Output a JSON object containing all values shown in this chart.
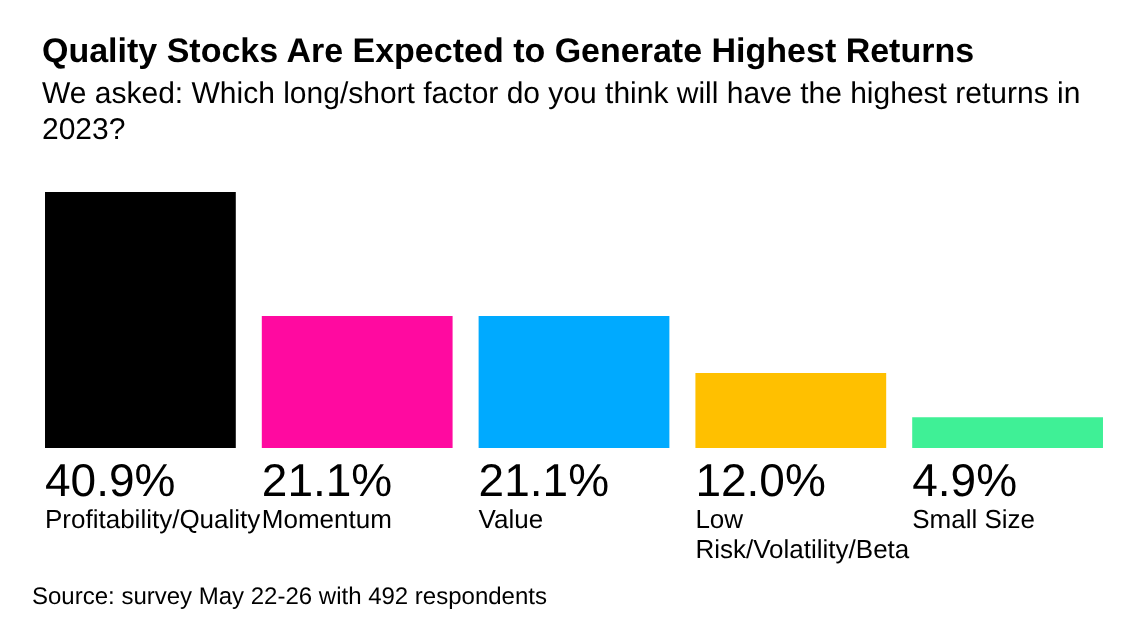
{
  "chart_data": {
    "type": "bar",
    "title": "Quality Stocks Are Expected to Generate Highest Returns",
    "subtitle": "We asked: Which long/short factor do you think will have the highest returns in 2023?",
    "categories": [
      "Profitability/Quality",
      "Momentum",
      "Value",
      "Low Risk/Volatility/Beta",
      "Small Size"
    ],
    "values": [
      40.9,
      21.1,
      21.1,
      12.0,
      4.9
    ],
    "colors": [
      "#000000",
      "#ff0aa0",
      "#00aaff",
      "#ffc000",
      "#3ff096"
    ],
    "value_labels": [
      "40.9%",
      "21.1%",
      "21.1%",
      "12.0%",
      "4.9%"
    ],
    "annotations": [
      "Source: survey May 22-26 with 492 respondents"
    ],
    "grid": false
  }
}
